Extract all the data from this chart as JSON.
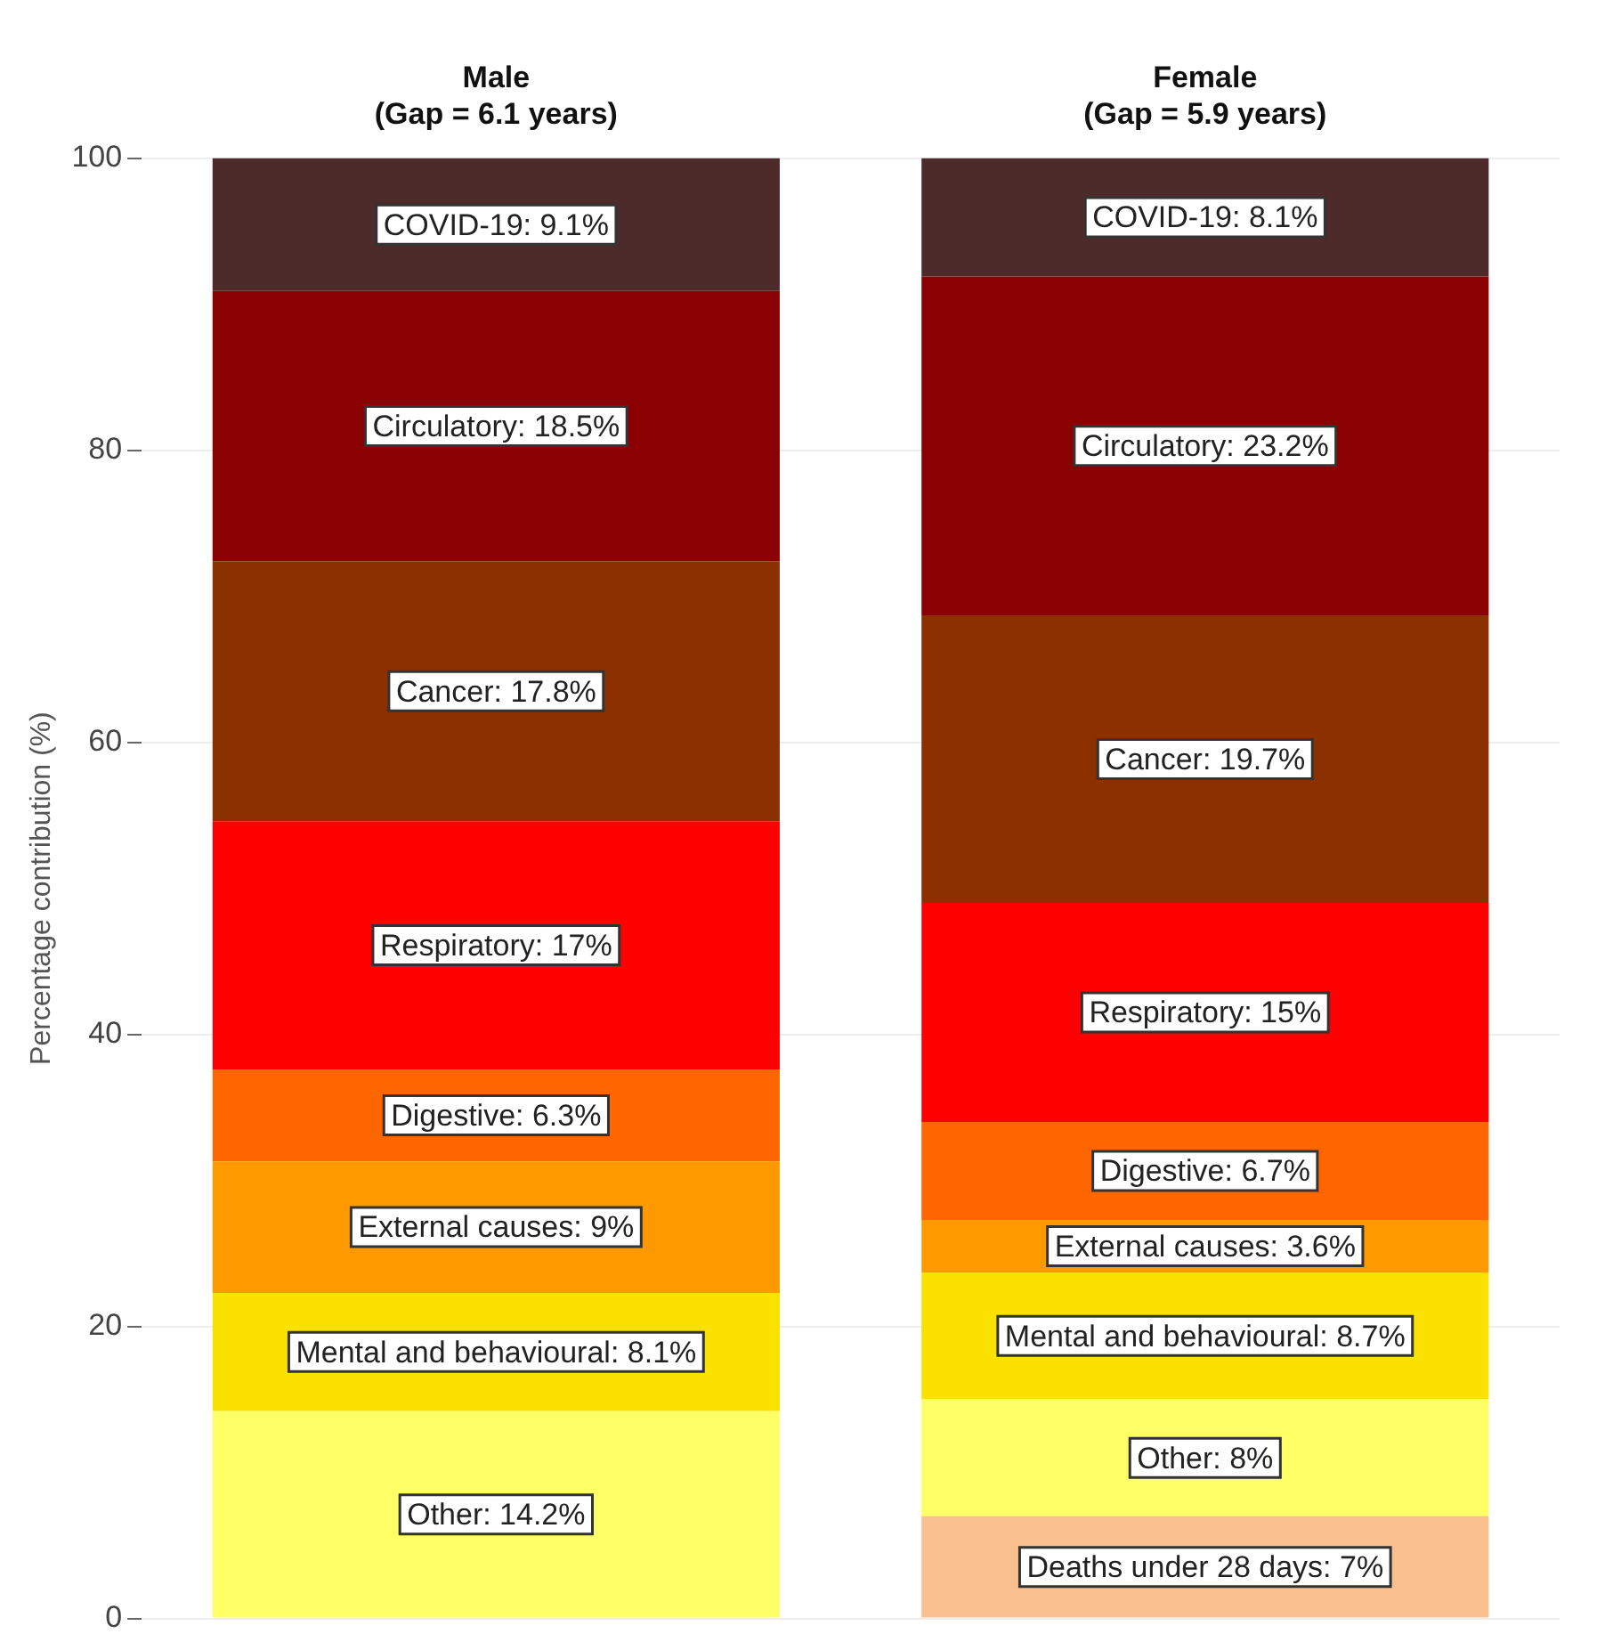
{
  "chart_data": {
    "type": "bar",
    "stacked": true,
    "categories": [
      "Male\n(Gap = 6.1 years)",
      "Female\n(Gap = 5.9 years)"
    ],
    "ylabel": "Percentage contribution (%)",
    "ylim": [
      0,
      100
    ],
    "yticks": [
      0,
      20,
      40,
      60,
      80,
      100
    ],
    "grid": "y",
    "legend": false,
    "series": [
      {
        "color": "#f9c08e",
        "values": [
          null,
          7
        ],
        "value_labels": [
          null,
          "Deaths under 28 days: 7%"
        ]
      },
      {
        "color": "#ffff66",
        "values": [
          14.2,
          8
        ],
        "value_labels": [
          "Other: 14.2%",
          "Other: 8%"
        ]
      },
      {
        "color": "#fae100",
        "values": [
          8.1,
          8.7
        ],
        "value_labels": [
          "Mental and behavioural: 8.1%",
          "Mental and behavioural: 8.7%"
        ]
      },
      {
        "color": "#ff9900",
        "values": [
          9,
          3.6
        ],
        "value_labels": [
          "External causes: 9%",
          "External causes: 3.6%"
        ]
      },
      {
        "color": "#ff6600",
        "values": [
          6.3,
          6.7
        ],
        "value_labels": [
          "Digestive: 6.3%",
          "Digestive: 6.7%"
        ]
      },
      {
        "color": "#ff0000",
        "values": [
          17,
          15
        ],
        "value_labels": [
          "Respiratory: 17%",
          "Respiratory: 15%"
        ]
      },
      {
        "color": "#8b3000",
        "values": [
          17.8,
          19.7
        ],
        "value_labels": [
          "Cancer: 17.8%",
          "Cancer: 19.7%"
        ]
      },
      {
        "color": "#8b0000",
        "values": [
          18.5,
          23.2
        ],
        "value_labels": [
          "Circulatory: 18.5%",
          "Circulatory: 23.2%"
        ]
      },
      {
        "color": "#4d2b2b",
        "values": [
          9.1,
          8.1
        ],
        "value_labels": [
          "COVID-19: 9.1%",
          "COVID-19: 8.1%"
        ]
      }
    ]
  }
}
